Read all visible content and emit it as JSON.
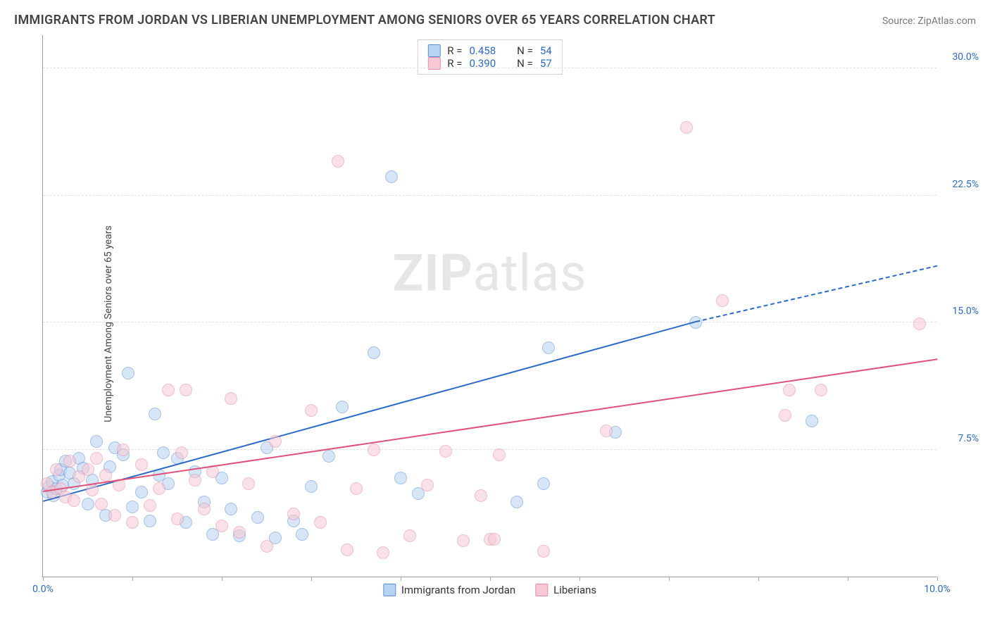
{
  "title": "IMMIGRANTS FROM JORDAN VS LIBERIAN UNEMPLOYMENT AMONG SENIORS OVER 65 YEARS CORRELATION CHART",
  "source": "Source: ZipAtlas.com",
  "y_axis_label": "Unemployment Among Seniors over 65 years",
  "watermark_a": "ZIP",
  "watermark_b": "atlas",
  "chart": {
    "type": "scatter",
    "background_color": "#ffffff",
    "grid_color": "#e0e0e0",
    "axis_color": "#999999",
    "label_color": "#444444",
    "tick_label_color": "#2a6ac8",
    "title_color": "#444444",
    "title_fontsize": 18,
    "label_fontsize": 14,
    "xlim": [
      0,
      10
    ],
    "ylim": [
      0,
      32
    ],
    "y_ticks": [
      7.5,
      15.0,
      22.5,
      30.0
    ],
    "y_tick_labels": [
      "7.5%",
      "15.0%",
      "22.5%",
      "30.0%"
    ],
    "x_tick_positions": [
      0,
      1,
      2,
      3,
      4,
      5,
      6,
      7,
      8,
      9,
      10
    ],
    "x_tick_labels": {
      "0": "0.0%",
      "10": "10.0%"
    },
    "point_radius": 9,
    "point_opacity": 0.55,
    "series": [
      {
        "name": "Immigrants from Jordan",
        "color_fill": "#b7d3f2",
        "color_stroke": "#5a8fd6",
        "R": "0.458",
        "N": "54",
        "trend": {
          "x1": 0,
          "y1": 4.4,
          "x2": 7.3,
          "y2": 15.0,
          "extend_x2": 10,
          "extend_y2": 18.3,
          "color": "#2a6ac8",
          "width": 2,
          "dash_extend": true
        },
        "points": [
          [
            0.05,
            5.0
          ],
          [
            0.07,
            5.3
          ],
          [
            0.1,
            5.6
          ],
          [
            0.12,
            4.8
          ],
          [
            0.15,
            5.2
          ],
          [
            0.18,
            6.0
          ],
          [
            0.2,
            6.3
          ],
          [
            0.22,
            5.4
          ],
          [
            0.25,
            6.8
          ],
          [
            0.3,
            6.1
          ],
          [
            0.35,
            5.5
          ],
          [
            0.4,
            7.0
          ],
          [
            0.45,
            6.4
          ],
          [
            0.5,
            4.3
          ],
          [
            0.55,
            5.7
          ],
          [
            0.6,
            8.0
          ],
          [
            0.7,
            3.6
          ],
          [
            0.75,
            6.5
          ],
          [
            0.8,
            7.6
          ],
          [
            0.9,
            7.2
          ],
          [
            0.95,
            12.0
          ],
          [
            1.0,
            4.1
          ],
          [
            1.1,
            5.0
          ],
          [
            1.2,
            3.3
          ],
          [
            1.25,
            9.6
          ],
          [
            1.3,
            6.0
          ],
          [
            1.35,
            7.3
          ],
          [
            1.4,
            5.5
          ],
          [
            1.5,
            7.0
          ],
          [
            1.6,
            3.2
          ],
          [
            1.7,
            6.2
          ],
          [
            1.8,
            4.4
          ],
          [
            1.9,
            2.5
          ],
          [
            2.0,
            5.8
          ],
          [
            2.1,
            4.0
          ],
          [
            2.2,
            2.4
          ],
          [
            2.4,
            3.5
          ],
          [
            2.5,
            7.6
          ],
          [
            2.6,
            2.3
          ],
          [
            2.8,
            3.3
          ],
          [
            2.9,
            2.5
          ],
          [
            3.0,
            5.3
          ],
          [
            3.2,
            7.1
          ],
          [
            3.35,
            10.0
          ],
          [
            3.7,
            13.2
          ],
          [
            3.9,
            23.6
          ],
          [
            4.0,
            5.8
          ],
          [
            4.2,
            4.9
          ],
          [
            5.3,
            4.4
          ],
          [
            5.6,
            5.5
          ],
          [
            5.65,
            13.5
          ],
          [
            6.4,
            8.5
          ],
          [
            7.3,
            15.0
          ],
          [
            8.6,
            9.2
          ]
        ]
      },
      {
        "name": "Liberians",
        "color_fill": "#f6c9d4",
        "color_stroke": "#e58aa3",
        "R": "0.390",
        "N": "57",
        "trend": {
          "x1": 0,
          "y1": 5.0,
          "x2": 10,
          "y2": 12.8,
          "color": "#e15078",
          "width": 2,
          "dash_extend": false
        },
        "points": [
          [
            0.05,
            5.5
          ],
          [
            0.1,
            5.0
          ],
          [
            0.15,
            6.3
          ],
          [
            0.2,
            5.2
          ],
          [
            0.25,
            4.7
          ],
          [
            0.3,
            6.8
          ],
          [
            0.35,
            4.5
          ],
          [
            0.4,
            5.9
          ],
          [
            0.5,
            6.3
          ],
          [
            0.55,
            5.1
          ],
          [
            0.6,
            7.0
          ],
          [
            0.65,
            4.3
          ],
          [
            0.7,
            6.0
          ],
          [
            0.8,
            3.6
          ],
          [
            0.85,
            5.4
          ],
          [
            0.9,
            7.5
          ],
          [
            1.0,
            3.2
          ],
          [
            1.1,
            6.6
          ],
          [
            1.2,
            4.2
          ],
          [
            1.3,
            5.2
          ],
          [
            1.4,
            11.0
          ],
          [
            1.5,
            3.4
          ],
          [
            1.55,
            7.3
          ],
          [
            1.6,
            11.0
          ],
          [
            1.7,
            5.7
          ],
          [
            1.8,
            4.0
          ],
          [
            1.9,
            6.2
          ],
          [
            2.0,
            3.0
          ],
          [
            2.1,
            10.5
          ],
          [
            2.2,
            2.6
          ],
          [
            2.3,
            5.5
          ],
          [
            2.5,
            1.8
          ],
          [
            2.6,
            8.0
          ],
          [
            2.8,
            3.7
          ],
          [
            3.0,
            9.8
          ],
          [
            3.1,
            3.2
          ],
          [
            3.3,
            24.5
          ],
          [
            3.4,
            1.6
          ],
          [
            3.5,
            5.2
          ],
          [
            3.7,
            7.5
          ],
          [
            3.8,
            1.4
          ],
          [
            4.1,
            2.4
          ],
          [
            4.3,
            5.4
          ],
          [
            4.5,
            7.4
          ],
          [
            4.7,
            2.1
          ],
          [
            4.9,
            4.8
          ],
          [
            5.0,
            2.2
          ],
          [
            5.05,
            2.2
          ],
          [
            5.1,
            7.2
          ],
          [
            5.6,
            1.5
          ],
          [
            7.2,
            26.5
          ],
          [
            7.6,
            16.3
          ],
          [
            8.3,
            9.5
          ],
          [
            8.35,
            11.0
          ],
          [
            8.7,
            11.0
          ],
          [
            9.8,
            14.9
          ],
          [
            6.3,
            8.6
          ]
        ]
      }
    ]
  },
  "legend_bottom": [
    {
      "label": "Immigrants from Jordan",
      "fill": "#b7d3f2",
      "stroke": "#5a8fd6"
    },
    {
      "label": "Liberians",
      "fill": "#f6c9d4",
      "stroke": "#e58aa3"
    }
  ]
}
